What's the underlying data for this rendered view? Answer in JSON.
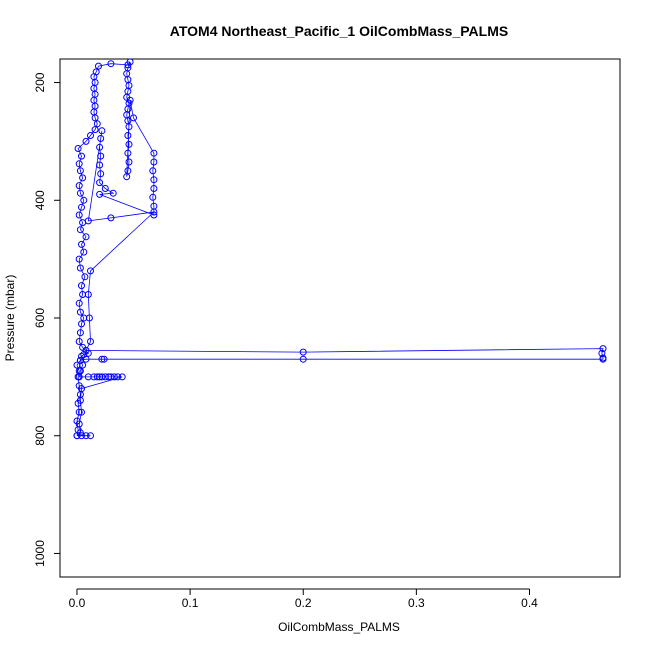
{
  "chart_data": {
    "type": "scatter",
    "title": "ATOM4 Northeast_Pacific_1 OilCombMass_PALMS",
    "xlabel": "OilCombMass_PALMS",
    "ylabel": "Pressure (mbar)",
    "xlim": [
      -0.015,
      0.48
    ],
    "ylim": [
      1040,
      160
    ],
    "y_reversed": true,
    "grid": false,
    "legend": "none",
    "x_ticks": [
      {
        "value": 0,
        "label": "0.0"
      },
      {
        "value": 0.1,
        "label": "0.1"
      },
      {
        "value": 0.2,
        "label": "0.2"
      },
      {
        "value": 0.3,
        "label": "0.3"
      },
      {
        "value": 0.4,
        "label": "0.4"
      }
    ],
    "y_ticks": [
      {
        "value": 200,
        "label": "200"
      },
      {
        "value": 400,
        "label": "400"
      },
      {
        "value": 600,
        "label": "600"
      },
      {
        "value": 800,
        "label": "800"
      },
      {
        "value": 1000,
        "label": "1000"
      }
    ],
    "series": [
      {
        "color": "#0000ff",
        "points": [
          [
            0.0,
            800
          ],
          [
            0.001,
            790
          ],
          [
            0.0,
            775
          ],
          [
            0.002,
            760
          ],
          [
            0.001,
            745
          ],
          [
            0.003,
            730
          ],
          [
            0.002,
            715
          ],
          [
            0.001,
            700
          ],
          [
            0.002,
            690
          ],
          [
            0.0,
            680
          ],
          [
            0.003,
            672
          ],
          [
            0.004,
            665
          ],
          [
            0.006,
            662
          ],
          [
            0.01,
            660
          ],
          [
            0.005,
            650
          ],
          [
            0.002,
            640
          ],
          [
            0.003,
            625
          ],
          [
            0.004,
            610
          ],
          [
            0.006,
            600
          ],
          [
            0.003,
            590
          ],
          [
            0.002,
            575
          ],
          [
            0.005,
            560
          ],
          [
            0.004,
            545
          ],
          [
            0.007,
            530
          ],
          [
            0.003,
            515
          ],
          [
            0.002,
            500
          ],
          [
            0.006,
            488
          ],
          [
            0.004,
            475
          ],
          [
            0.008,
            462
          ],
          [
            0.003,
            450
          ],
          [
            0.005,
            438
          ],
          [
            0.002,
            425
          ],
          [
            0.004,
            412
          ],
          [
            0.006,
            400
          ],
          [
            0.003,
            388
          ],
          [
            0.002,
            375
          ],
          [
            0.005,
            362
          ],
          [
            0.003,
            350
          ],
          [
            0.002,
            338
          ],
          [
            0.004,
            325
          ],
          [
            0.001,
            312
          ],
          [
            0.008,
            300
          ],
          [
            0.012,
            290
          ],
          [
            0.016,
            280
          ],
          [
            0.018,
            270
          ],
          [
            0.016,
            260
          ],
          [
            0.015,
            250
          ],
          [
            0.016,
            240
          ],
          [
            0.015,
            230
          ],
          [
            0.016,
            220
          ],
          [
            0.015,
            210
          ],
          [
            0.016,
            200
          ],
          [
            0.015,
            190
          ],
          [
            0.017,
            182
          ],
          [
            0.019,
            172
          ],
          [
            0.03,
            168
          ],
          [
            0.045,
            170
          ],
          [
            0.047,
            165
          ],
          [
            0.045,
            175
          ],
          [
            0.044,
            185
          ],
          [
            0.045,
            195
          ],
          [
            0.046,
            205
          ],
          [
            0.045,
            215
          ],
          [
            0.044,
            225
          ],
          [
            0.046,
            235
          ],
          [
            0.045,
            245
          ],
          [
            0.044,
            255
          ],
          [
            0.045,
            265
          ],
          [
            0.046,
            275
          ],
          [
            0.045,
            290
          ],
          [
            0.046,
            305
          ],
          [
            0.045,
            320
          ],
          [
            0.046,
            335
          ],
          [
            0.045,
            350
          ],
          [
            0.044,
            360
          ],
          [
            0.047,
            230
          ],
          [
            0.05,
            260
          ],
          [
            0.068,
            320
          ],
          [
            0.068,
            335
          ],
          [
            0.067,
            350
          ],
          [
            0.068,
            365
          ],
          [
            0.068,
            380
          ],
          [
            0.067,
            395
          ],
          [
            0.068,
            410
          ],
          [
            0.068,
            425
          ],
          [
            0.02,
            390
          ],
          [
            0.032,
            388
          ],
          [
            0.025,
            380
          ],
          [
            0.02,
            370
          ],
          [
            0.021,
            355
          ],
          [
            0.02,
            340
          ],
          [
            0.021,
            325
          ],
          [
            0.02,
            310
          ],
          [
            0.021,
            295
          ],
          [
            0.022,
            282
          ],
          [
            0.01,
            435
          ],
          [
            0.03,
            430
          ],
          [
            0.068,
            420
          ],
          [
            0.012,
            520
          ],
          [
            0.01,
            560
          ],
          [
            0.011,
            600
          ],
          [
            0.012,
            640
          ],
          [
            0.008,
            655
          ],
          [
            0.2,
            658
          ],
          [
            0.465,
            652
          ],
          [
            0.464,
            660
          ],
          [
            0.465,
            668
          ],
          [
            0.465,
            670
          ],
          [
            0.2,
            670
          ],
          [
            0.022,
            670
          ],
          [
            0.024,
            670
          ],
          [
            0.008,
            670
          ],
          [
            0.003,
            672
          ],
          [
            0.005,
            680
          ],
          [
            0.003,
            690
          ],
          [
            0.002,
            700
          ],
          [
            0.01,
            700
          ],
          [
            0.015,
            700
          ],
          [
            0.018,
            700
          ],
          [
            0.02,
            700
          ],
          [
            0.022,
            700
          ],
          [
            0.025,
            700
          ],
          [
            0.028,
            700
          ],
          [
            0.03,
            700
          ],
          [
            0.033,
            700
          ],
          [
            0.036,
            700
          ],
          [
            0.04,
            700
          ],
          [
            0.004,
            720
          ],
          [
            0.003,
            740
          ],
          [
            0.004,
            760
          ],
          [
            0.002,
            780
          ],
          [
            0.003,
            795
          ],
          [
            0.004,
            800
          ],
          [
            0.008,
            800
          ],
          [
            0.012,
            800
          ],
          [
            0.0,
            800
          ]
        ]
      }
    ]
  }
}
